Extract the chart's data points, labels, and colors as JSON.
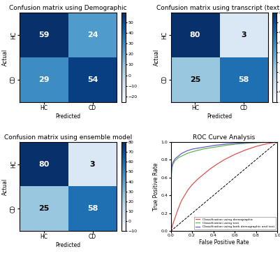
{
  "cm1": {
    "title": "Confusion matrix using Demographic",
    "matrix": [
      [
        59,
        24
      ],
      [
        29,
        54
      ]
    ],
    "vmin": -25,
    "vmax": 59
  },
  "cm2": {
    "title": "Confusion matrix using transcript (text)",
    "matrix": [
      [
        80,
        3
      ],
      [
        25,
        58
      ]
    ],
    "vmin": -10,
    "vmax": 80
  },
  "cm3": {
    "title": "Confusion matrix using ensemble model",
    "matrix": [
      [
        80,
        3
      ],
      [
        25,
        58
      ]
    ],
    "vmin": -10,
    "vmax": 80
  },
  "roc": {
    "title": "ROC Curve Analysis",
    "xlabel": "False Positive Rate",
    "ylabel": "True Positive Rate",
    "legend": [
      "Classification using demographic",
      "Classification using text",
      "Classification using both demographic and text"
    ],
    "colors": [
      "#d9534f",
      "#5cb85c",
      "#6a5acd"
    ]
  },
  "classes": [
    "HC",
    "CD"
  ],
  "xlabel": "Predicted",
  "ylabel": "Actual",
  "colormap": "Blues",
  "fontsize_title": 6.5,
  "fontsize_labels": 5.5,
  "fontsize_numbers": 8,
  "fontsize_cb": 4.5
}
